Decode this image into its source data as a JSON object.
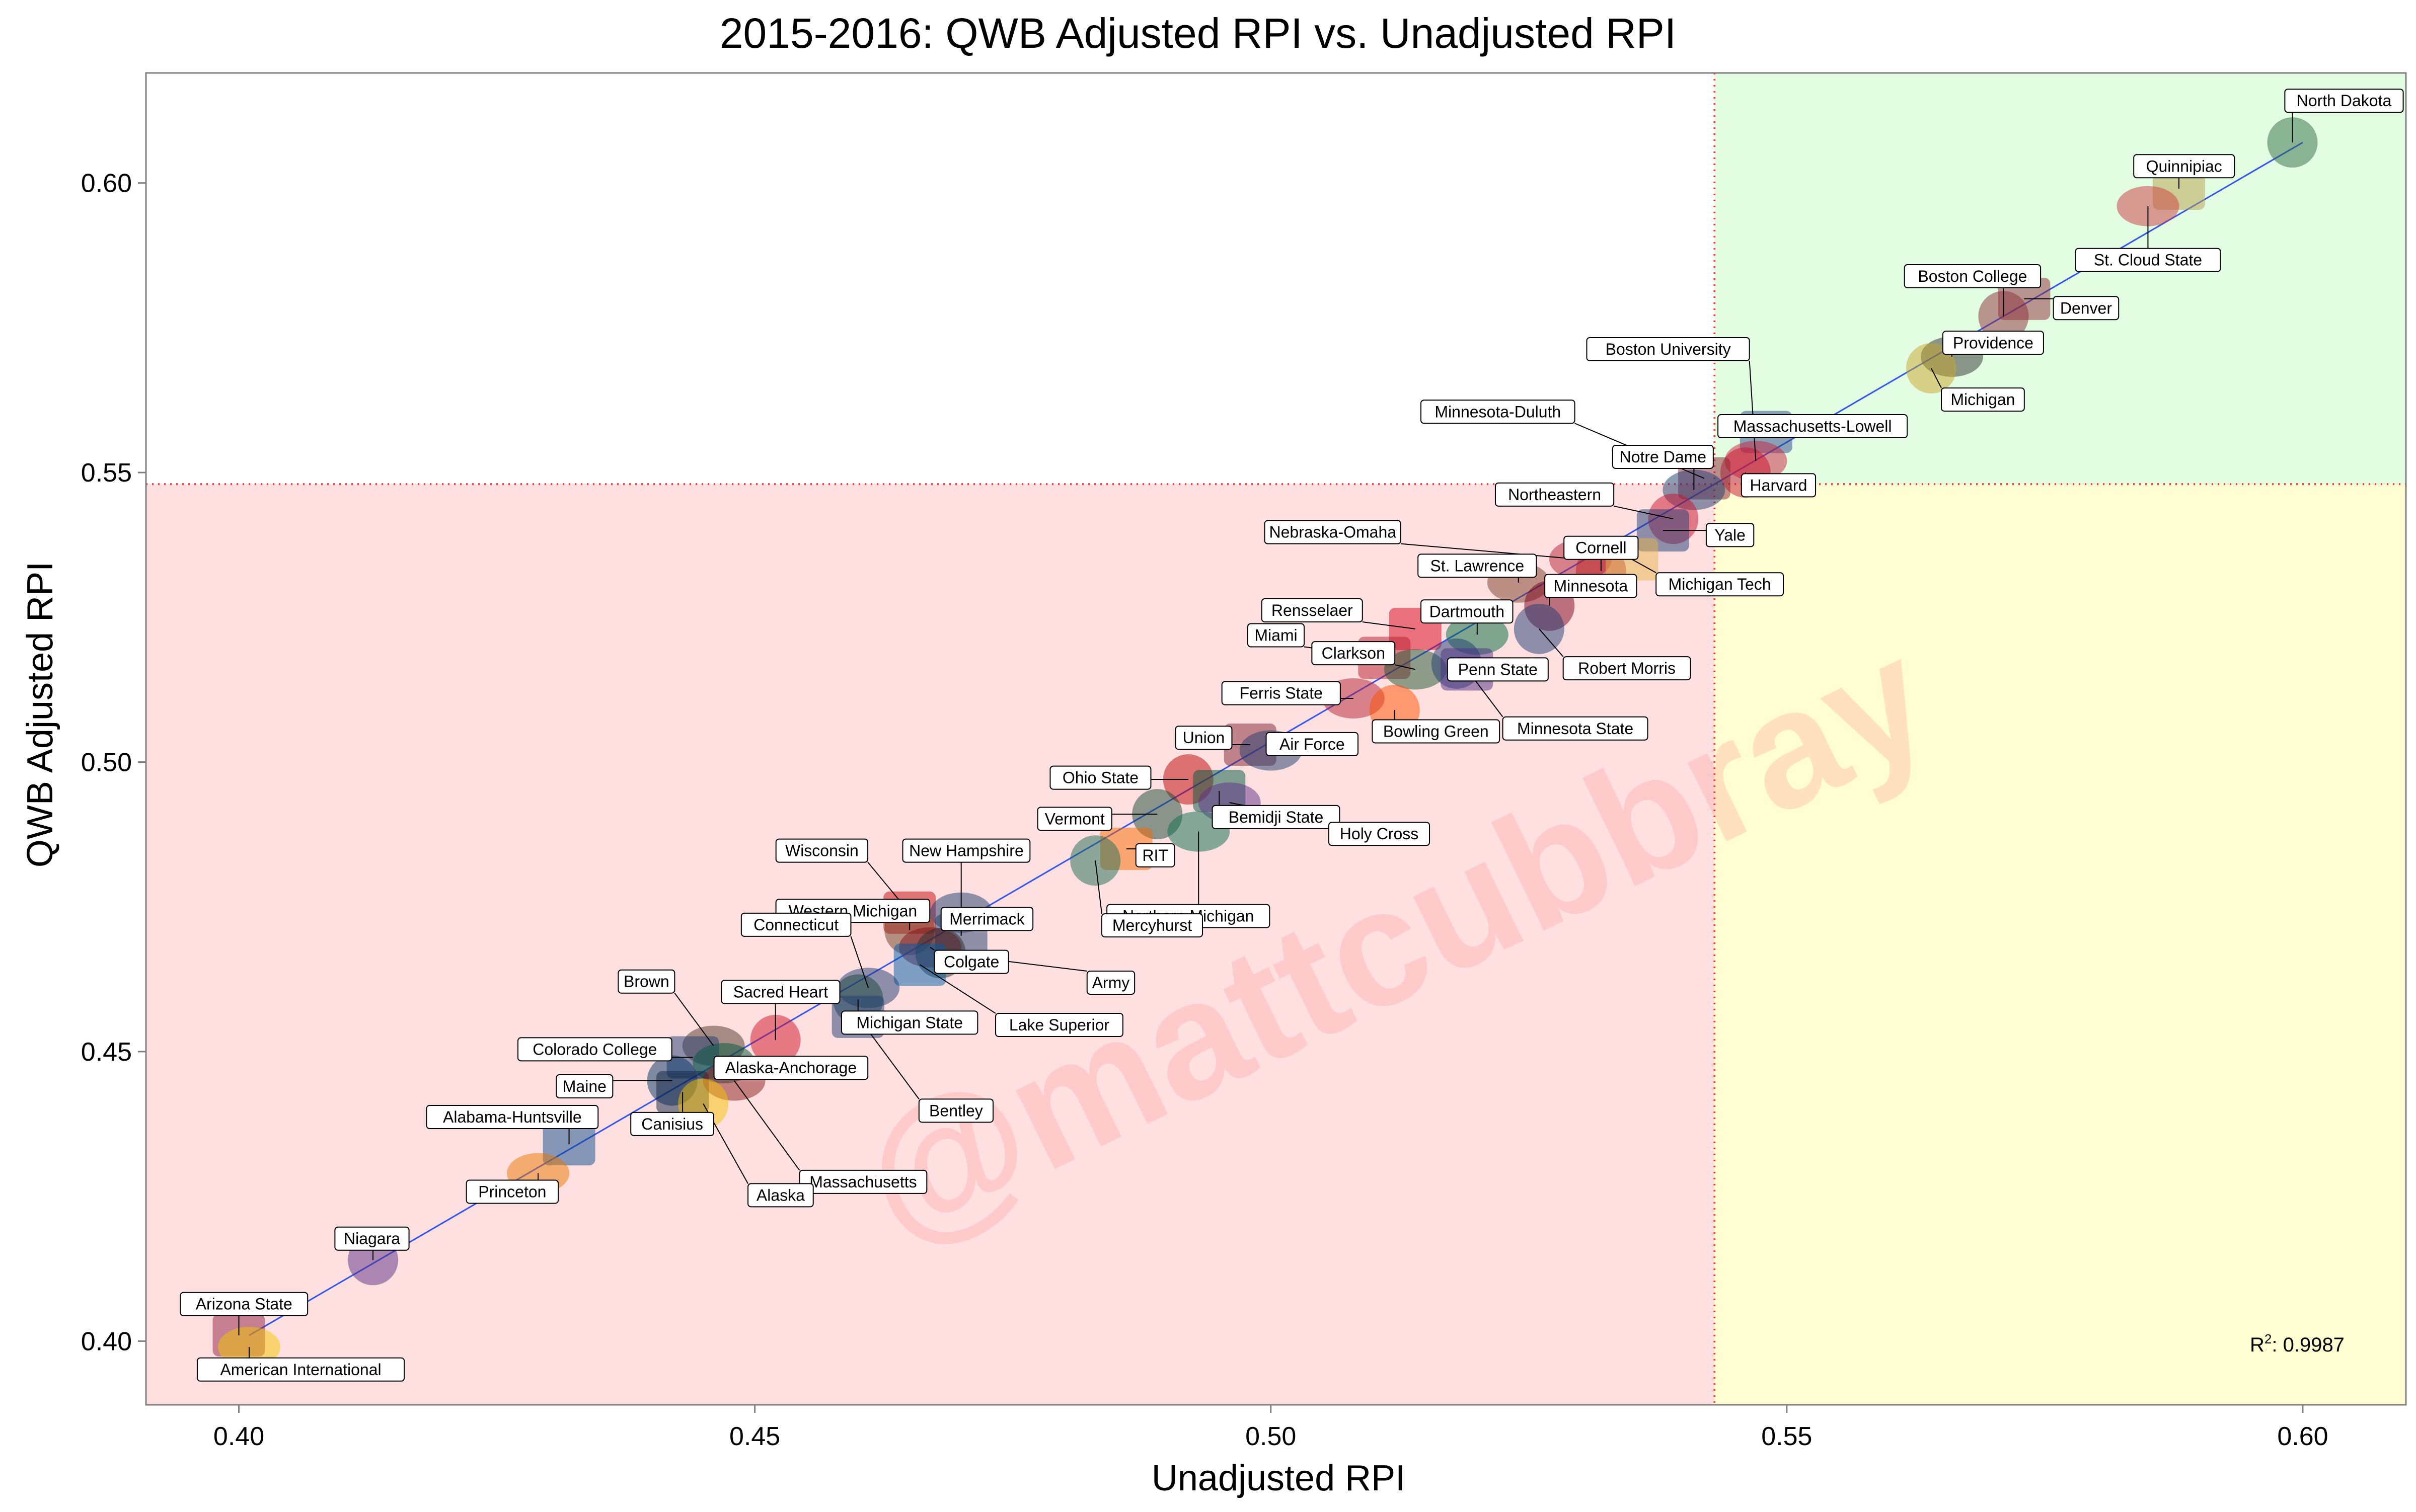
{
  "chart_data": {
    "type": "scatter",
    "title": "2015-2016: QWB Adjusted RPI vs. Unadjusted RPI",
    "xlabel": "Unadjusted RPI",
    "ylabel": "QWB Adjusted RPI",
    "xlim": [
      0.391,
      0.61
    ],
    "ylim": [
      0.389,
      0.619
    ],
    "x_ticks": [
      0.4,
      0.45,
      0.5,
      0.55,
      0.6
    ],
    "y_ticks": [
      0.4,
      0.45,
      0.5,
      0.55,
      0.6
    ],
    "x_tick_labels": [
      "0.40",
      "0.45",
      "0.50",
      "0.55",
      "0.60"
    ],
    "y_tick_labels": [
      "0.40",
      "0.45",
      "0.50",
      "0.55",
      "0.60"
    ],
    "threshold_x": 0.543,
    "threshold_y": 0.548,
    "quadrant_colors": {
      "below_left": "#ffe0e0",
      "above_right": "#e2fde2",
      "below_right": "#fffdd2"
    },
    "fit_line": {
      "color": "#3355ee",
      "from": [
        0.401,
        0.401
      ],
      "to": [
        0.6,
        0.607
      ]
    },
    "r2_prefix": "R",
    "r2_exponent": "2",
    "r2_value": ": 0.9987",
    "watermark": "@mattcubbray",
    "grid": false,
    "points": [
      {
        "name": "North Dakota",
        "x": 0.599,
        "y": 0.607,
        "label_dx": 0.005,
        "label_dy": 0.0072,
        "logo": "#2e6b44"
      },
      {
        "name": "Quinnipiac",
        "x": 0.588,
        "y": 0.599,
        "label_dx": 0.0005,
        "label_dy": 0.0039,
        "logo": "#b5a04a"
      },
      {
        "name": "St. Cloud State",
        "x": 0.585,
        "y": 0.596,
        "label_dx": 0.0,
        "label_dy": -0.0093,
        "logo": "#c9373d"
      },
      {
        "name": "Boston College",
        "x": 0.571,
        "y": 0.577,
        "label_dx": -0.003,
        "label_dy": 0.0069,
        "logo": "#8c2b3a"
      },
      {
        "name": "Denver",
        "x": 0.573,
        "y": 0.58,
        "label_dx": 0.006,
        "label_dy": -0.0016,
        "logo": "#8c2b3a"
      },
      {
        "name": "Providence",
        "x": 0.566,
        "y": 0.57,
        "label_dx": 0.004,
        "label_dy": 0.0024,
        "logo": "#2d2d2d"
      },
      {
        "name": "Michigan",
        "x": 0.564,
        "y": 0.568,
        "label_dx": 0.005,
        "label_dy": -0.0054,
        "logo": "#caa62b"
      },
      {
        "name": "Massachusetts-Lowell",
        "x": 0.548,
        "y": 0.557,
        "label_dx": 0.0045,
        "label_dy": 0.001,
        "logo": "#2e4a8c"
      },
      {
        "name": "Boston University",
        "x": 0.547,
        "y": 0.552,
        "label_dx": -0.0085,
        "label_dy": 0.0193,
        "logo": "#cc1f40"
      },
      {
        "name": "Harvard",
        "x": 0.546,
        "y": 0.55,
        "label_dx": 0.0032,
        "label_dy": -0.0022,
        "logo": "#c8102e"
      },
      {
        "name": "Minnesota-Duluth",
        "x": 0.542,
        "y": 0.549,
        "label_dx": -0.02,
        "label_dy": 0.0115,
        "logo": "#8c2131"
      },
      {
        "name": "Notre Dame",
        "x": 0.541,
        "y": 0.547,
        "label_dx": -0.003,
        "label_dy": 0.0057,
        "logo": "#1d3b6e"
      },
      {
        "name": "Northeastern",
        "x": 0.539,
        "y": 0.542,
        "label_dx": -0.0115,
        "label_dy": 0.0042,
        "logo": "#c8102e"
      },
      {
        "name": "Yale",
        "x": 0.538,
        "y": 0.54,
        "label_dx": 0.0065,
        "label_dy": -0.0008,
        "logo": "#1f3b73"
      },
      {
        "name": "Nebraska-Omaha",
        "x": 0.53,
        "y": 0.535,
        "label_dx": -0.024,
        "label_dy": 0.0047,
        "logo": "#b22234"
      },
      {
        "name": "Cornell",
        "x": 0.532,
        "y": 0.533,
        "label_dx": 0.0,
        "label_dy": 0.004,
        "logo": "#b31b1b"
      },
      {
        "name": "Michigan Tech",
        "x": 0.535,
        "y": 0.535,
        "label_dx": 0.0085,
        "label_dy": -0.0043,
        "logo": "#e6b34a"
      },
      {
        "name": "St. Lawrence",
        "x": 0.524,
        "y": 0.531,
        "label_dx": -0.004,
        "label_dy": 0.0029,
        "logo": "#7a3d2a"
      },
      {
        "name": "Minnesota",
        "x": 0.527,
        "y": 0.527,
        "label_dx": 0.004,
        "label_dy": 0.0034,
        "logo": "#7a0019"
      },
      {
        "name": "Rensselaer",
        "x": 0.514,
        "y": 0.523,
        "label_dx": -0.01,
        "label_dy": 0.0032,
        "logo": "#d6001c"
      },
      {
        "name": "Dartmouth",
        "x": 0.52,
        "y": 0.522,
        "label_dx": -0.001,
        "label_dy": 0.004,
        "logo": "#00693e"
      },
      {
        "name": "Robert Morris",
        "x": 0.526,
        "y": 0.523,
        "label_dx": 0.0085,
        "label_dy": -0.0068,
        "logo": "#1f3b73"
      },
      {
        "name": "Miami",
        "x": 0.511,
        "y": 0.518,
        "label_dx": -0.0105,
        "label_dy": 0.0039,
        "logo": "#b61e2e"
      },
      {
        "name": "Clarkson",
        "x": 0.514,
        "y": 0.516,
        "label_dx": -0.006,
        "label_dy": 0.0028,
        "logo": "#1e5631"
      },
      {
        "name": "Penn State",
        "x": 0.518,
        "y": 0.517,
        "label_dx": 0.004,
        "label_dy": -0.001,
        "logo": "#1e3c72"
      },
      {
        "name": "Minnesota State",
        "x": 0.519,
        "y": 0.516,
        "label_dx": 0.0105,
        "label_dy": -0.0102,
        "logo": "#4b2e83"
      },
      {
        "name": "Ferris State",
        "x": 0.508,
        "y": 0.511,
        "label_dx": -0.007,
        "label_dy": 0.0009,
        "logo": "#b22234"
      },
      {
        "name": "Bowling Green",
        "x": 0.512,
        "y": 0.509,
        "label_dx": 0.004,
        "label_dy": -0.0037,
        "logo": "#fe5000"
      },
      {
        "name": "Union",
        "x": 0.498,
        "y": 0.503,
        "label_dx": -0.0045,
        "label_dy": 0.0012,
        "logo": "#822433"
      },
      {
        "name": "Air Force",
        "x": 0.5,
        "y": 0.502,
        "label_dx": 0.004,
        "label_dy": 0.0011,
        "logo": "#1d3b6e"
      },
      {
        "name": "Ohio State",
        "x": 0.492,
        "y": 0.497,
        "label_dx": -0.0085,
        "label_dy": 0.0003,
        "logo": "#bb0000"
      },
      {
        "name": "Bemidji State",
        "x": 0.495,
        "y": 0.495,
        "label_dx": 0.0055,
        "label_dy": -0.0045,
        "logo": "#00573f"
      },
      {
        "name": "Holy Cross",
        "x": 0.496,
        "y": 0.493,
        "label_dx": 0.0145,
        "label_dy": -0.0054,
        "logo": "#602d89"
      },
      {
        "name": "Vermont",
        "x": 0.489,
        "y": 0.491,
        "label_dx": -0.008,
        "label_dy": -0.0008,
        "logo": "#154734"
      },
      {
        "name": "RIT",
        "x": 0.486,
        "y": 0.485,
        "label_dx": 0.0028,
        "label_dy": -0.0011,
        "logo": "#f76902"
      },
      {
        "name": "Northern Michigan",
        "x": 0.493,
        "y": 0.488,
        "label_dx": -0.001,
        "label_dy": -0.0146,
        "logo": "#0b6e4f"
      },
      {
        "name": "Mercyhurst",
        "x": 0.483,
        "y": 0.483,
        "label_dx": 0.0055,
        "label_dy": -0.0112,
        "logo": "#1e6b52"
      },
      {
        "name": "Wisconsin",
        "x": 0.465,
        "y": 0.474,
        "label_dx": -0.0085,
        "label_dy": 0.0107,
        "logo": "#c5050c"
      },
      {
        "name": "New Hampshire",
        "x": 0.47,
        "y": 0.474,
        "label_dx": 0.0005,
        "label_dy": 0.0107,
        "logo": "#1d3b6e"
      },
      {
        "name": "Western Michigan",
        "x": 0.465,
        "y": 0.471,
        "label_dx": -0.0055,
        "label_dy": 0.0033,
        "logo": "#6c4023"
      },
      {
        "name": "Merrimack",
        "x": 0.47,
        "y": 0.47,
        "label_dx": 0.0025,
        "label_dy": 0.0029,
        "logo": "#1d3b6e"
      },
      {
        "name": "Colgate",
        "x": 0.467,
        "y": 0.468,
        "label_dx": 0.004,
        "label_dy": -0.0025,
        "logo": "#821019"
      },
      {
        "name": "Army",
        "x": 0.468,
        "y": 0.467,
        "label_dx": 0.0165,
        "label_dy": -0.0051,
        "logo": "#2b2b2b"
      },
      {
        "name": "Lake Superior",
        "x": 0.466,
        "y": 0.465,
        "label_dx": 0.0135,
        "label_dy": -0.0104,
        "logo": "#005ba5"
      },
      {
        "name": "Connecticut",
        "x": 0.461,
        "y": 0.461,
        "label_dx": -0.007,
        "label_dy": 0.0109,
        "logo": "#1f3b73"
      },
      {
        "name": "Michigan State",
        "x": 0.46,
        "y": 0.459,
        "label_dx": 0.005,
        "label_dy": -0.004,
        "logo": "#18453b"
      },
      {
        "name": "Bentley",
        "x": 0.46,
        "y": 0.456,
        "label_dx": 0.0095,
        "label_dy": -0.0162,
        "logo": "#1f3b73"
      },
      {
        "name": "Brown",
        "x": 0.446,
        "y": 0.451,
        "label_dx": -0.0065,
        "label_dy": 0.0111,
        "logo": "#4e3629"
      },
      {
        "name": "Sacred Heart",
        "x": 0.452,
        "y": 0.452,
        "label_dx": 0.0005,
        "label_dy": 0.0083,
        "logo": "#ce1126"
      },
      {
        "name": "Colorado College",
        "x": 0.444,
        "y": 0.449,
        "label_dx": -0.0095,
        "label_dy": 0.0014,
        "logo": "#1f3b73"
      },
      {
        "name": "Alaska-Anchorage",
        "x": 0.447,
        "y": 0.448,
        "label_dx": 0.0065,
        "label_dy": -0.0008,
        "logo": "#00583d"
      },
      {
        "name": "Maine",
        "x": 0.442,
        "y": 0.445,
        "label_dx": -0.0085,
        "label_dy": -0.001,
        "logo": "#003263"
      },
      {
        "name": "Canisius",
        "x": 0.443,
        "y": 0.443,
        "label_dx": -0.001,
        "label_dy": -0.0055,
        "logo": "#0e2240"
      },
      {
        "name": "Massachusetts",
        "x": 0.448,
        "y": 0.445,
        "label_dx": 0.0125,
        "label_dy": -0.0175,
        "logo": "#881c1c"
      },
      {
        "name": "Alaska",
        "x": 0.445,
        "y": 0.441,
        "label_dx": 0.0075,
        "label_dy": -0.0158,
        "logo": "#f5c100"
      },
      {
        "name": "Alabama-Huntsville",
        "x": 0.432,
        "y": 0.434,
        "label_dx": -0.0055,
        "label_dy": 0.0047,
        "logo": "#0b4b8c"
      },
      {
        "name": "Princeton",
        "x": 0.429,
        "y": 0.429,
        "label_dx": -0.0025,
        "label_dy": -0.0032,
        "logo": "#e77500"
      },
      {
        "name": "Niagara",
        "x": 0.413,
        "y": 0.414,
        "label_dx": -0.0001,
        "label_dy": 0.0037,
        "logo": "#582c83"
      },
      {
        "name": "Arizona State",
        "x": 0.4,
        "y": 0.401,
        "label_dx": 0.0005,
        "label_dy": 0.0054,
        "logo": "#8c1d40"
      },
      {
        "name": "American International",
        "x": 0.401,
        "y": 0.399,
        "label_dx": 0.005,
        "label_dy": -0.0039,
        "logo": "#f2c500"
      }
    ]
  }
}
